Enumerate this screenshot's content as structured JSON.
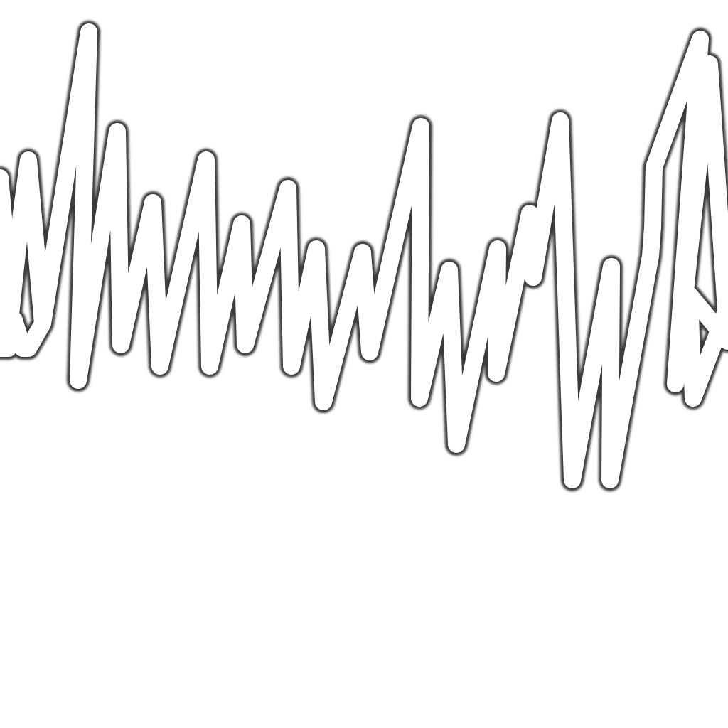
{
  "scribble": {
    "kind": "hand-drawn zigzag stroke",
    "stroke_color": "#ffffff",
    "outline_color": "#3a3a3a",
    "background_color": "#ffffff"
  }
}
